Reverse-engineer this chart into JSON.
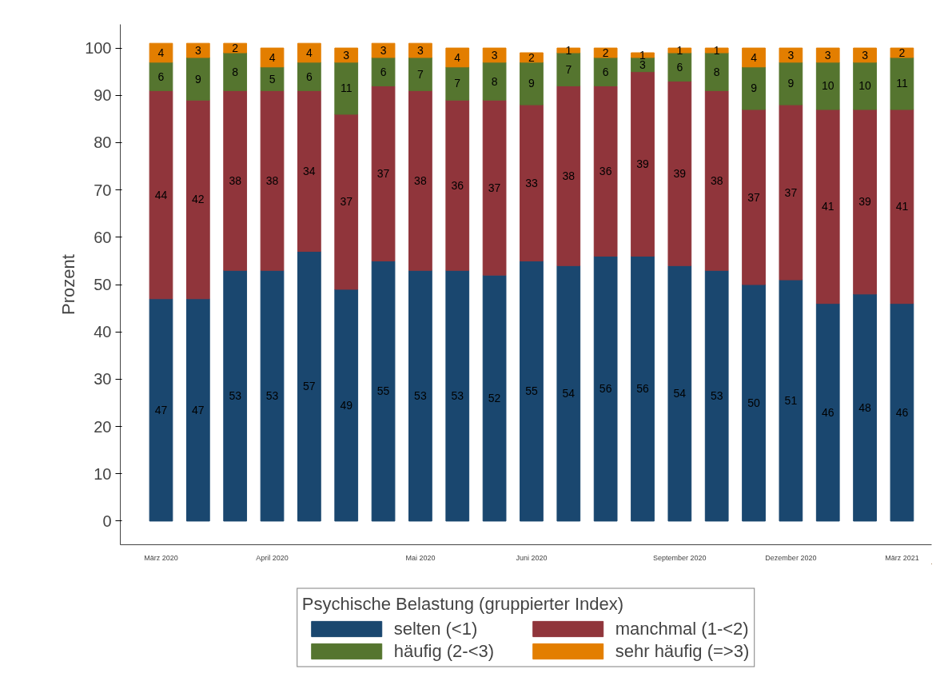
{
  "chart_data": {
    "type": "bar",
    "stacked": true,
    "ylabel": "Prozent",
    "legend_title": "Psychische Belastung (gruppierter Index)",
    "categories": [
      "März 2020",
      null,
      null,
      "April 2020",
      null,
      null,
      null,
      "Mai 2020",
      null,
      null,
      "Juni 2020",
      null,
      null,
      null,
      "September 2020",
      null,
      null,
      "Dezember 2020",
      null,
      null,
      "März 2021"
    ],
    "series": [
      {
        "name": "selten (<1)",
        "color": "#1a476f",
        "values": [
          47,
          47,
          53,
          53,
          57,
          49,
          55,
          53,
          53,
          52,
          55,
          54,
          56,
          56,
          54,
          53,
          50,
          51,
          46,
          48,
          46
        ]
      },
      {
        "name": "manchmal (1-<2)",
        "color": "#90353b",
        "values": [
          44,
          42,
          38,
          38,
          34,
          37,
          37,
          38,
          36,
          37,
          33,
          38,
          36,
          39,
          39,
          38,
          37,
          37,
          41,
          39,
          41
        ]
      },
      {
        "name": "häufig (2-<3)",
        "color": "#55752f",
        "values": [
          6,
          9,
          8,
          5,
          6,
          11,
          6,
          7,
          7,
          8,
          9,
          7,
          6,
          3,
          6,
          8,
          9,
          9,
          10,
          10,
          11
        ]
      },
      {
        "name": "sehr häufig (=>3)",
        "color": "#e37e00",
        "values": [
          4,
          3,
          2,
          4,
          4,
          3,
          3,
          3,
          4,
          3,
          2,
          1,
          2,
          1,
          1,
          1,
          4,
          3,
          3,
          3,
          2
        ]
      }
    ],
    "ylim": [
      -5,
      105
    ],
    "yticks": [
      0,
      10,
      20,
      30,
      40,
      50,
      60,
      70,
      80,
      90,
      100
    ],
    "data_labels": true,
    "grid": false,
    "legend": "bottom"
  }
}
